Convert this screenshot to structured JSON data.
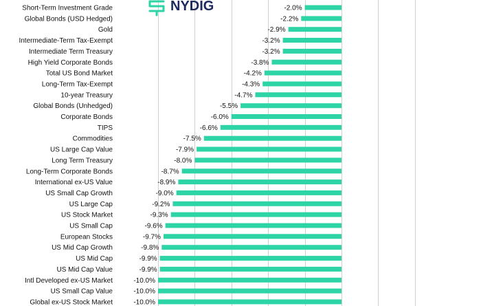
{
  "brand": {
    "name": "NYDIG",
    "color": "#2dd4a6",
    "text_color": "#1c2a5e"
  },
  "colors": {
    "bar": "#2dd4a6",
    "grid": "#d0d0d0"
  },
  "chart_data": {
    "type": "bar",
    "orientation": "horizontal",
    "categories": [
      "Short-Term Investment Grade",
      "Global Bonds (USD Hedged)",
      "Gold",
      "Intermediate-Term Tax-Exempt",
      "Intermediate Term Treasury",
      "High Yield Corporate Bonds",
      "Total US Bond Market",
      "Long-Term Tax-Exempt",
      "10-year Treasury",
      "Global Bonds (Unhedged)",
      "Corporate Bonds",
      "TIPS",
      "Commodities",
      "US Large Cap Value",
      "Long Term Treasury",
      "Long-Term Corporate Bonds",
      "International ex-US Value",
      "US Small Cap Growth",
      "US Large Cap",
      "US Stock Market",
      "US Small Cap",
      "European Stocks",
      "US Mid Cap Growth",
      "US Mid Cap",
      "US Mid Cap Value",
      "Intl Developed ex-US Market",
      "US Small Cap Value",
      "Global ex-US Stock Market"
    ],
    "values": [
      -2.0,
      -2.2,
      -2.9,
      -3.2,
      -3.2,
      -3.8,
      -4.2,
      -4.3,
      -4.7,
      -5.5,
      -6.0,
      -6.6,
      -7.5,
      -7.9,
      -8.0,
      -8.7,
      -8.9,
      -9.0,
      -9.2,
      -9.3,
      -9.6,
      -9.7,
      -9.8,
      -9.9,
      -9.9,
      -10.0,
      -10.0,
      -10.0
    ],
    "value_labels": [
      "-2.0%",
      "-2.2%",
      "-2.9%",
      "-3.2%",
      "-3.2%",
      "-3.8%",
      "-4.2%",
      "-4.3%",
      "-4.7%",
      "-5.5%",
      "-6.0%",
      "-6.6%",
      "-7.5%",
      "-7.9%",
      "-8.0%",
      "-8.7%",
      "-8.9%",
      "-9.0%",
      "-9.2%",
      "-9.3%",
      "-9.6%",
      "-9.7%",
      "-9.8%",
      "-9.9%",
      "-9.9%",
      "-10.0%",
      "-10.0%",
      "-10.0%"
    ],
    "xlim": [
      -10,
      4
    ],
    "grid": true,
    "title": "",
    "xlabel": "",
    "ylabel": ""
  }
}
